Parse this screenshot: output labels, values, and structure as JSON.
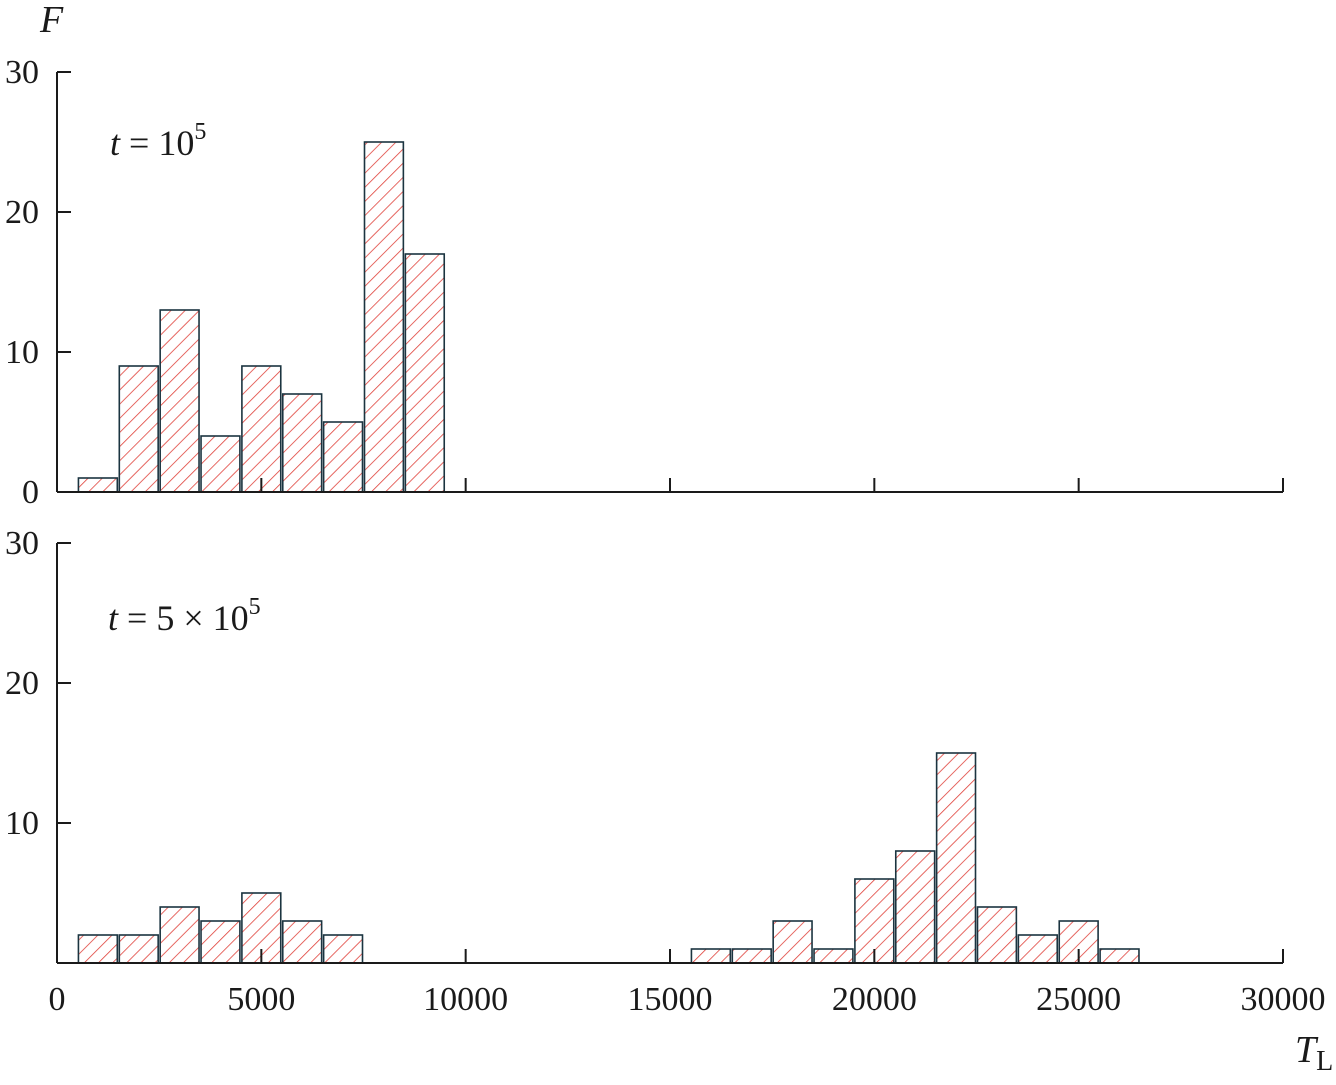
{
  "colors": {
    "hatch": "#e0413a",
    "bar_edge": "#1b3440",
    "axis": "#1a1a1a",
    "background": "#ffffff"
  },
  "chart_data": {
    "type": "bar",
    "x_label_main": "T",
    "x_label_sub": "L",
    "y_label": "F",
    "xlim": [
      0,
      30000
    ],
    "x_ticks": [
      0,
      5000,
      10000,
      15000,
      20000,
      25000,
      30000
    ],
    "x_tick_labels": [
      "0",
      "5000",
      "10000",
      "15000",
      "20000",
      "25000",
      "30000"
    ],
    "bin_width": 1000,
    "fill_pattern": "diagonal hatch",
    "grid": false,
    "panels": [
      {
        "label": {
          "var": "t",
          "eq": " = ",
          "base": "10",
          "exp": "5"
        },
        "ylim": [
          0,
          30
        ],
        "y_ticks": [
          0,
          10,
          20,
          30
        ],
        "y_tick_labels": [
          "0",
          "10",
          "20",
          "30"
        ],
        "bins": [
          {
            "x": 1000,
            "value": 1
          },
          {
            "x": 2000,
            "value": 9
          },
          {
            "x": 3000,
            "value": 13
          },
          {
            "x": 4000,
            "value": 4
          },
          {
            "x": 5000,
            "value": 9
          },
          {
            "x": 6000,
            "value": 7
          },
          {
            "x": 7000,
            "value": 5
          },
          {
            "x": 8000,
            "value": 25
          },
          {
            "x": 9000,
            "value": 17
          }
        ]
      },
      {
        "label": {
          "var": "t",
          "eq": " = 5 × ",
          "base": "10",
          "exp": "5"
        },
        "ylim": [
          0,
          30
        ],
        "y_ticks": [
          10,
          20,
          30
        ],
        "y_tick_labels": [
          "10",
          "20",
          "30"
        ],
        "bins": [
          {
            "x": 1000,
            "value": 2
          },
          {
            "x": 2000,
            "value": 2
          },
          {
            "x": 3000,
            "value": 4
          },
          {
            "x": 4000,
            "value": 3
          },
          {
            "x": 5000,
            "value": 5
          },
          {
            "x": 6000,
            "value": 3
          },
          {
            "x": 7000,
            "value": 2
          },
          {
            "x": 16000,
            "value": 1
          },
          {
            "x": 17000,
            "value": 1
          },
          {
            "x": 18000,
            "value": 3
          },
          {
            "x": 19000,
            "value": 1
          },
          {
            "x": 20000,
            "value": 6
          },
          {
            "x": 21000,
            "value": 8
          },
          {
            "x": 22000,
            "value": 15
          },
          {
            "x": 23000,
            "value": 4
          },
          {
            "x": 24000,
            "value": 2
          },
          {
            "x": 25000,
            "value": 3
          },
          {
            "x": 26000,
            "value": 1
          }
        ]
      }
    ]
  }
}
